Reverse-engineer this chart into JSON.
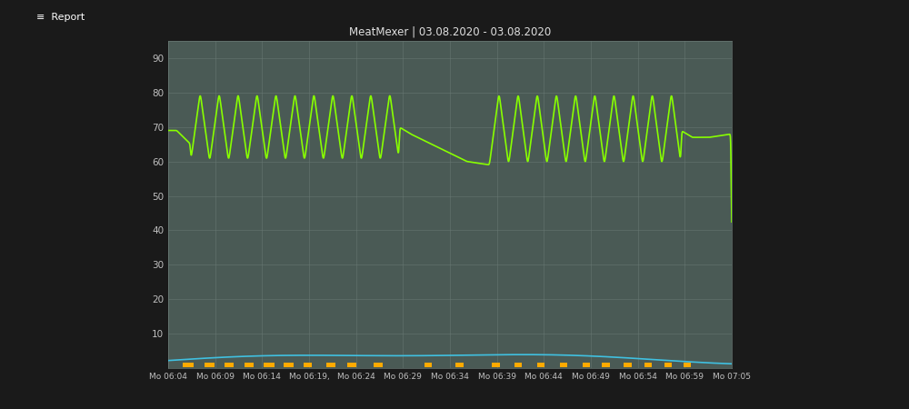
{
  "title": "MeatMexer | 03.08.2020 - 03.08.2020",
  "outer_bg": "#1a1a1a",
  "left_panel_color": "#c8ccc8",
  "chart_bg": "#4a5a55",
  "plot_bg": "#4a5a55",
  "grid_color": "#6a7a75",
  "title_color": "#e0e0e0",
  "tick_color": "#c0c0c0",
  "ylim": [
    0,
    95
  ],
  "yticks": [
    10,
    20,
    30,
    40,
    50,
    60,
    70,
    80,
    90
  ],
  "x_labels": [
    "Mo 06:04",
    "Mo 06:09",
    "Mo 06:14",
    "Mo 06:19,",
    "Mo 06:24",
    "Mo 06:29",
    "Mo 06:34",
    "Mo 06:39",
    "Mo 06:44",
    "Mo 06:49",
    "Mo 06:54",
    "Mo 06:59",
    "Mo 07:05"
  ],
  "green_line_color": "#88ff00",
  "blue_line_color": "#40c0e0",
  "orange_bar_color": "#ffaa00",
  "right_bg": "#111111",
  "top_bar_color": "#2a8888"
}
